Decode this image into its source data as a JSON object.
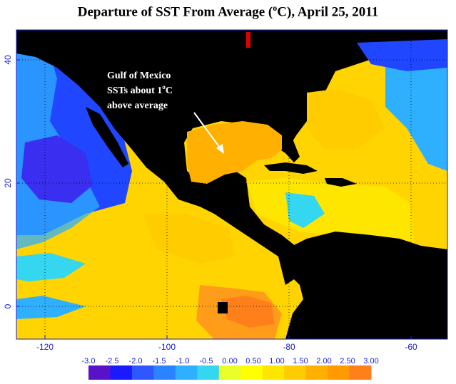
{
  "title": {
    "prefix": "Departure of SST From Average (",
    "sup": "o",
    "suffix": "C), April 25, 2011"
  },
  "x_ticks": [
    {
      "label": "-120",
      "value": -120
    },
    {
      "label": "-100",
      "value": -100
    },
    {
      "label": "-80",
      "value": -80
    },
    {
      "label": "-60",
      "value": -60
    }
  ],
  "y_ticks": [
    {
      "label": "40",
      "value": 40
    },
    {
      "label": "20",
      "value": 20
    },
    {
      "label": "0",
      "value": 0
    }
  ],
  "annotation": {
    "line1": "Gulf of Mexico",
    "line2_prefix": "SSTs about 1",
    "line2_sup": "o",
    "line2_suffix": "C",
    "line3": "above average"
  },
  "colorbar": {
    "labels": [
      "-3.0",
      "-2.5",
      "-2.0",
      "-1.5",
      "-1.0",
      "-0.5",
      "0.00",
      "0.50",
      "1.00",
      "1.50",
      "2.00",
      "2.50",
      "3.00"
    ],
    "colors": [
      "#5a12c8",
      "#1a1aff",
      "#2f57ff",
      "#2b84ff",
      "#2eb0ff",
      "#34d6f0",
      "#e8ff2a",
      "#ffff00",
      "#ffe600",
      "#ffcc00",
      "#ffb000",
      "#ff9b00",
      "#ff7f1a"
    ]
  },
  "colors": {
    "land": "#000000",
    "warm_ocean": "#ffd400",
    "warm_orange": "#ff9d1a",
    "cool_ocean": "#2eb0ff",
    "cold_ocean": "#2046ff",
    "axis": "#1b1bd6"
  }
}
